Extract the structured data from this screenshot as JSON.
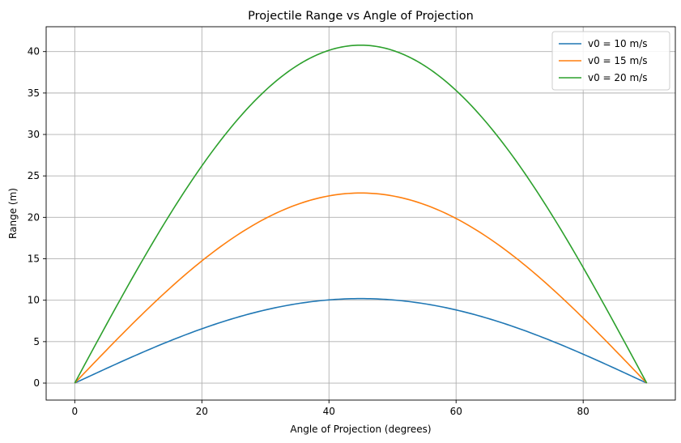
{
  "chart_data": {
    "type": "line",
    "title": "Projectile Range vs Angle of Projection",
    "xlabel": "Angle of Projection (degrees)",
    "ylabel": "Range (m)",
    "xlim": [
      -4.5,
      94.5
    ],
    "ylim": [
      -2.05,
      43
    ],
    "xticks": [
      0,
      20,
      40,
      60,
      80
    ],
    "yticks": [
      0,
      5,
      10,
      15,
      20,
      25,
      30,
      35,
      40
    ],
    "grid": true,
    "legend_position": "top-right",
    "g": 9.81,
    "x": [
      0,
      5,
      10,
      15,
      20,
      25,
      30,
      35,
      40,
      45,
      50,
      55,
      60,
      65,
      70,
      75,
      80,
      85,
      90
    ],
    "series": [
      {
        "name": "v0 = 10 m/s",
        "color": "#1f77b4",
        "v0": 10,
        "values": [
          0,
          1.77,
          3.49,
          5.1,
          6.55,
          7.81,
          8.83,
          9.58,
          10.04,
          10.19,
          10.04,
          9.58,
          8.83,
          7.81,
          6.55,
          5.1,
          3.49,
          1.77,
          0
        ]
      },
      {
        "name": "v0 = 15 m/s",
        "color": "#ff7f0e",
        "v0": 15,
        "values": [
          0,
          3.98,
          7.84,
          11.47,
          14.74,
          17.57,
          19.86,
          21.55,
          22.59,
          22.94,
          22.59,
          21.55,
          19.86,
          17.57,
          14.74,
          11.47,
          7.84,
          3.98,
          0
        ]
      },
      {
        "name": "v0 = 20 m/s",
        "color": "#2ca02c",
        "v0": 20,
        "values": [
          0,
          7.08,
          13.94,
          20.39,
          26.21,
          31.24,
          35.31,
          38.31,
          40.16,
          40.77,
          40.16,
          38.31,
          35.31,
          31.24,
          26.21,
          20.39,
          13.94,
          7.08,
          0
        ]
      }
    ]
  }
}
